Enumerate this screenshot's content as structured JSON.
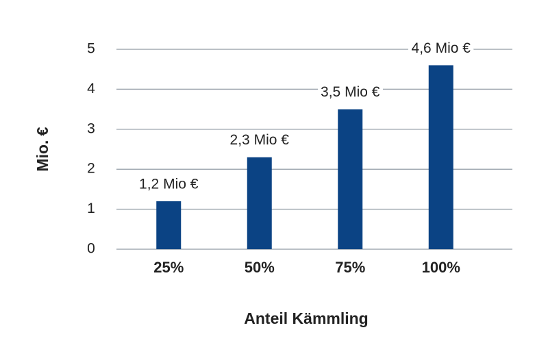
{
  "chart_data": {
    "type": "bar",
    "x_label": "Anteil Kämmling",
    "y_label": "Mio. €",
    "categories": [
      "25%",
      "50%",
      "75%",
      "100%"
    ],
    "values": [
      1.2,
      2.3,
      3.5,
      4.6
    ],
    "value_labels": [
      "1,2 Mio €",
      "2,3 Mio €",
      "3,5 Mio €",
      "4,6 Mio €"
    ],
    "color": "#0b4384",
    "ylim": [
      0,
      5
    ],
    "yticks": [
      0,
      1,
      2,
      3,
      4,
      5
    ],
    "grid": true
  }
}
